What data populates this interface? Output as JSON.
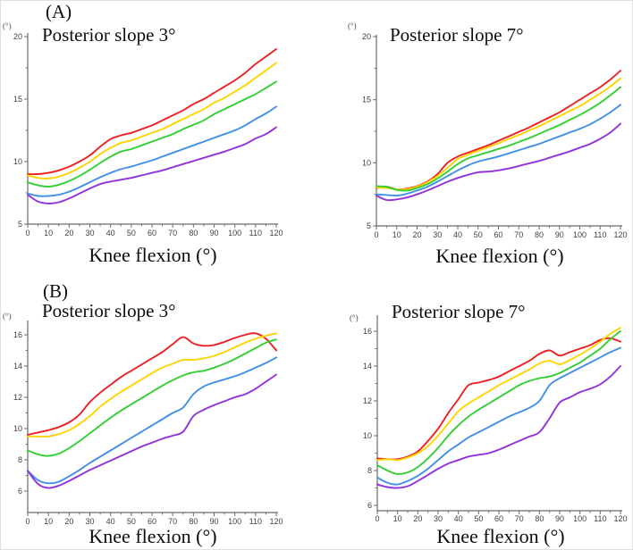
{
  "figure": {
    "panel_a_label": "(A)",
    "panel_b_label": "(B)"
  },
  "chart_data": [
    {
      "id": "panel-a-posterior-slope-3",
      "panel": "A",
      "type": "line",
      "title": "Posterior slope 3°",
      "xlabel": "Knee flexion (°)",
      "ylabel": "(°)",
      "xlim": [
        0,
        120
      ],
      "ylim": [
        5,
        20
      ],
      "xticks": [
        0,
        10,
        20,
        30,
        40,
        50,
        60,
        70,
        80,
        90,
        100,
        110,
        120
      ],
      "xminor_step": 5,
      "yticks": [
        5,
        10,
        15,
        20
      ],
      "yminor": [
        7.5,
        12.5,
        17.5
      ],
      "grid": false,
      "legend": false,
      "x": [
        0,
        5,
        10,
        15,
        20,
        25,
        30,
        35,
        40,
        45,
        50,
        55,
        60,
        65,
        70,
        75,
        80,
        85,
        90,
        95,
        100,
        105,
        110,
        115,
        120
      ],
      "series": [
        {
          "name": "red",
          "color": "#ee2024",
          "values": [
            9.0,
            9.0,
            9.1,
            9.3,
            9.6,
            10.0,
            10.5,
            11.2,
            11.8,
            12.1,
            12.3,
            12.6,
            12.9,
            13.3,
            13.7,
            14.1,
            14.6,
            15.0,
            15.5,
            16.0,
            16.5,
            17.1,
            17.8,
            18.4,
            19.0
          ]
        },
        {
          "name": "yellow",
          "color": "#ffd400",
          "values": [
            8.9,
            8.7,
            8.65,
            8.8,
            9.1,
            9.5,
            10.0,
            10.6,
            11.1,
            11.5,
            11.7,
            12.0,
            12.3,
            12.6,
            13.0,
            13.4,
            13.8,
            14.2,
            14.7,
            15.1,
            15.6,
            16.1,
            16.7,
            17.3,
            17.9
          ]
        },
        {
          "name": "green",
          "color": "#33cf33",
          "values": [
            8.35,
            8.1,
            8.0,
            8.15,
            8.45,
            8.85,
            9.35,
            9.9,
            10.4,
            10.8,
            11.0,
            11.3,
            11.6,
            11.9,
            12.2,
            12.6,
            12.95,
            13.3,
            13.8,
            14.2,
            14.6,
            15.0,
            15.4,
            15.9,
            16.4
          ]
        },
        {
          "name": "blue",
          "color": "#4190e6",
          "values": [
            7.45,
            7.25,
            7.25,
            7.35,
            7.6,
            7.95,
            8.35,
            8.75,
            9.1,
            9.4,
            9.6,
            9.85,
            10.1,
            10.4,
            10.7,
            11.0,
            11.3,
            11.6,
            11.9,
            12.2,
            12.5,
            12.9,
            13.4,
            13.85,
            14.4
          ]
        },
        {
          "name": "purple",
          "color": "#9232d8",
          "values": [
            7.35,
            6.8,
            6.65,
            6.75,
            7.05,
            7.45,
            7.85,
            8.2,
            8.4,
            8.55,
            8.7,
            8.9,
            9.1,
            9.3,
            9.55,
            9.8,
            10.05,
            10.3,
            10.55,
            10.8,
            11.1,
            11.4,
            11.85,
            12.2,
            12.75
          ]
        }
      ]
    },
    {
      "id": "panel-a-posterior-slope-7",
      "panel": "A",
      "type": "line",
      "title": "Posterior slope 7°",
      "xlabel": "Knee flexion (°)",
      "ylabel": "(°)",
      "xlim": [
        0,
        120
      ],
      "ylim": [
        5,
        20
      ],
      "xticks": [
        0,
        10,
        20,
        30,
        40,
        50,
        60,
        70,
        80,
        90,
        100,
        110,
        120
      ],
      "xminor_step": 5,
      "yticks": [
        5,
        10,
        15,
        20
      ],
      "yminor": [
        7.5,
        12.5,
        17.5
      ],
      "grid": false,
      "legend": false,
      "x": [
        0,
        5,
        10,
        15,
        20,
        25,
        30,
        35,
        40,
        45,
        50,
        55,
        60,
        65,
        70,
        75,
        80,
        85,
        90,
        95,
        100,
        105,
        110,
        115,
        120
      ],
      "series": [
        {
          "name": "red",
          "color": "#ee2024",
          "values": [
            8.0,
            8.1,
            7.9,
            7.95,
            8.15,
            8.5,
            9.1,
            10.0,
            10.5,
            10.8,
            11.1,
            11.4,
            11.75,
            12.1,
            12.45,
            12.8,
            13.2,
            13.6,
            14.0,
            14.5,
            15.0,
            15.5,
            16.0,
            16.6,
            17.3
          ]
        },
        {
          "name": "yellow",
          "color": "#ffd400",
          "values": [
            8.05,
            8.0,
            7.9,
            7.9,
            8.1,
            8.45,
            8.95,
            9.6,
            10.3,
            10.65,
            10.95,
            11.25,
            11.55,
            11.9,
            12.2,
            12.55,
            12.9,
            13.3,
            13.7,
            14.1,
            14.5,
            15.0,
            15.5,
            16.05,
            16.7
          ]
        },
        {
          "name": "green",
          "color": "#33cf33",
          "values": [
            8.15,
            8.1,
            7.85,
            7.8,
            8.0,
            8.3,
            8.75,
            9.3,
            9.9,
            10.35,
            10.6,
            10.85,
            11.1,
            11.35,
            11.65,
            11.95,
            12.3,
            12.65,
            13.0,
            13.4,
            13.8,
            14.25,
            14.75,
            15.35,
            16.0
          ]
        },
        {
          "name": "blue",
          "color": "#4190e6",
          "values": [
            7.5,
            7.45,
            7.4,
            7.55,
            7.8,
            8.1,
            8.5,
            8.95,
            9.4,
            9.8,
            10.1,
            10.3,
            10.5,
            10.75,
            11.0,
            11.25,
            11.5,
            11.8,
            12.1,
            12.4,
            12.7,
            13.05,
            13.5,
            14.0,
            14.6
          ]
        },
        {
          "name": "purple",
          "color": "#9232d8",
          "values": [
            7.4,
            7.05,
            7.1,
            7.25,
            7.5,
            7.8,
            8.15,
            8.5,
            8.8,
            9.05,
            9.25,
            9.3,
            9.4,
            9.55,
            9.75,
            9.95,
            10.15,
            10.4,
            10.65,
            10.9,
            11.2,
            11.5,
            11.9,
            12.4,
            13.1
          ]
        }
      ]
    },
    {
      "id": "panel-b-posterior-slope-3",
      "panel": "B",
      "type": "line",
      "title": "Posterior slope 3°",
      "xlabel": "Knee flexion (°)",
      "ylabel": "(°)",
      "xlim": [
        0,
        120
      ],
      "ylim": [
        6,
        16
      ],
      "xticks": [
        0,
        10,
        20,
        30,
        40,
        50,
        60,
        70,
        80,
        90,
        100,
        110,
        120
      ],
      "xminor_step": 5,
      "yticks": [
        6,
        8,
        10,
        12,
        14,
        16
      ],
      "yminor": [
        7,
        9,
        11,
        13,
        15
      ],
      "grid": false,
      "legend": false,
      "x": [
        0,
        5,
        10,
        15,
        20,
        25,
        30,
        35,
        40,
        45,
        50,
        55,
        60,
        65,
        70,
        75,
        80,
        85,
        90,
        95,
        100,
        105,
        110,
        115,
        120
      ],
      "series": [
        {
          "name": "red",
          "color": "#ee2024",
          "values": [
            9.6,
            9.75,
            9.9,
            10.1,
            10.4,
            10.9,
            11.7,
            12.3,
            12.8,
            13.3,
            13.7,
            14.1,
            14.5,
            14.9,
            15.4,
            15.85,
            15.45,
            15.3,
            15.35,
            15.55,
            15.8,
            16.0,
            16.1,
            15.75,
            15.0
          ]
        },
        {
          "name": "yellow",
          "color": "#ffd400",
          "values": [
            9.5,
            9.5,
            9.5,
            9.65,
            9.9,
            10.3,
            10.8,
            11.4,
            11.9,
            12.35,
            12.75,
            13.15,
            13.55,
            13.9,
            14.15,
            14.4,
            14.4,
            14.5,
            14.65,
            14.9,
            15.2,
            15.5,
            15.75,
            15.95,
            16.1
          ]
        },
        {
          "name": "green",
          "color": "#33cf33",
          "values": [
            8.6,
            8.35,
            8.25,
            8.4,
            8.75,
            9.2,
            9.7,
            10.2,
            10.7,
            11.15,
            11.55,
            11.95,
            12.35,
            12.75,
            13.1,
            13.4,
            13.6,
            13.7,
            13.9,
            14.15,
            14.45,
            14.8,
            15.15,
            15.5,
            15.7
          ]
        },
        {
          "name": "blue",
          "color": "#4190e6",
          "values": [
            7.3,
            6.7,
            6.5,
            6.6,
            6.95,
            7.35,
            7.8,
            8.2,
            8.6,
            9.0,
            9.4,
            9.8,
            10.2,
            10.6,
            11.0,
            11.35,
            12.2,
            12.7,
            12.95,
            13.15,
            13.35,
            13.6,
            13.9,
            14.2,
            14.55
          ]
        },
        {
          "name": "purple",
          "color": "#9232d8",
          "values": [
            7.3,
            6.45,
            6.2,
            6.35,
            6.65,
            7.0,
            7.35,
            7.65,
            7.95,
            8.25,
            8.55,
            8.85,
            9.1,
            9.35,
            9.55,
            9.8,
            10.8,
            11.2,
            11.5,
            11.75,
            12.0,
            12.2,
            12.55,
            13.0,
            13.45
          ]
        }
      ]
    },
    {
      "id": "panel-b-posterior-slope-7",
      "panel": "B",
      "type": "line",
      "title": "Posterior slope 7°",
      "xlabel": "Knee flexion (°)",
      "ylabel": "(°)",
      "xlim": [
        0,
        120
      ],
      "ylim": [
        6,
        16
      ],
      "xticks": [
        0,
        10,
        20,
        30,
        40,
        50,
        60,
        70,
        80,
        90,
        100,
        110,
        120
      ],
      "xminor_step": 5,
      "yticks": [
        6,
        8,
        10,
        12,
        14,
        16
      ],
      "yminor": [
        7,
        9,
        11,
        13,
        15
      ],
      "grid": false,
      "legend": false,
      "x": [
        0,
        5,
        10,
        15,
        20,
        25,
        30,
        35,
        40,
        45,
        50,
        55,
        60,
        65,
        70,
        75,
        80,
        85,
        90,
        95,
        100,
        105,
        110,
        115,
        120
      ],
      "series": [
        {
          "name": "red",
          "color": "#ee2024",
          "values": [
            8.7,
            8.65,
            8.65,
            8.8,
            9.1,
            9.7,
            10.4,
            11.3,
            12.1,
            12.9,
            13.05,
            13.2,
            13.4,
            13.7,
            14.0,
            14.3,
            14.7,
            14.9,
            14.6,
            14.8,
            15.0,
            15.2,
            15.5,
            15.6,
            15.4
          ]
        },
        {
          "name": "yellow",
          "color": "#ffd400",
          "values": [
            8.6,
            8.65,
            8.6,
            8.75,
            9.0,
            9.4,
            10.0,
            10.7,
            11.4,
            11.85,
            12.2,
            12.55,
            12.9,
            13.2,
            13.5,
            13.8,
            14.15,
            14.3,
            14.1,
            14.35,
            14.65,
            15.0,
            15.4,
            15.85,
            16.2
          ]
        },
        {
          "name": "green",
          "color": "#33cf33",
          "values": [
            8.3,
            8.0,
            7.8,
            7.9,
            8.2,
            8.7,
            9.3,
            10.0,
            10.6,
            11.1,
            11.5,
            11.85,
            12.2,
            12.55,
            12.9,
            13.15,
            13.3,
            13.4,
            13.6,
            13.9,
            14.2,
            14.6,
            15.0,
            15.55,
            16.0
          ]
        },
        {
          "name": "blue",
          "color": "#4190e6",
          "values": [
            7.6,
            7.3,
            7.2,
            7.4,
            7.7,
            8.1,
            8.6,
            9.1,
            9.5,
            9.9,
            10.2,
            10.5,
            10.8,
            11.1,
            11.35,
            11.6,
            12.0,
            12.9,
            13.3,
            13.6,
            13.9,
            14.2,
            14.5,
            14.8,
            15.05
          ]
        },
        {
          "name": "purple",
          "color": "#9232d8",
          "values": [
            7.2,
            7.05,
            7.0,
            7.1,
            7.4,
            7.75,
            8.1,
            8.4,
            8.6,
            8.8,
            8.9,
            9.0,
            9.2,
            9.45,
            9.7,
            9.95,
            10.2,
            11.0,
            11.9,
            12.2,
            12.5,
            12.7,
            12.95,
            13.4,
            14.0
          ]
        }
      ]
    }
  ]
}
